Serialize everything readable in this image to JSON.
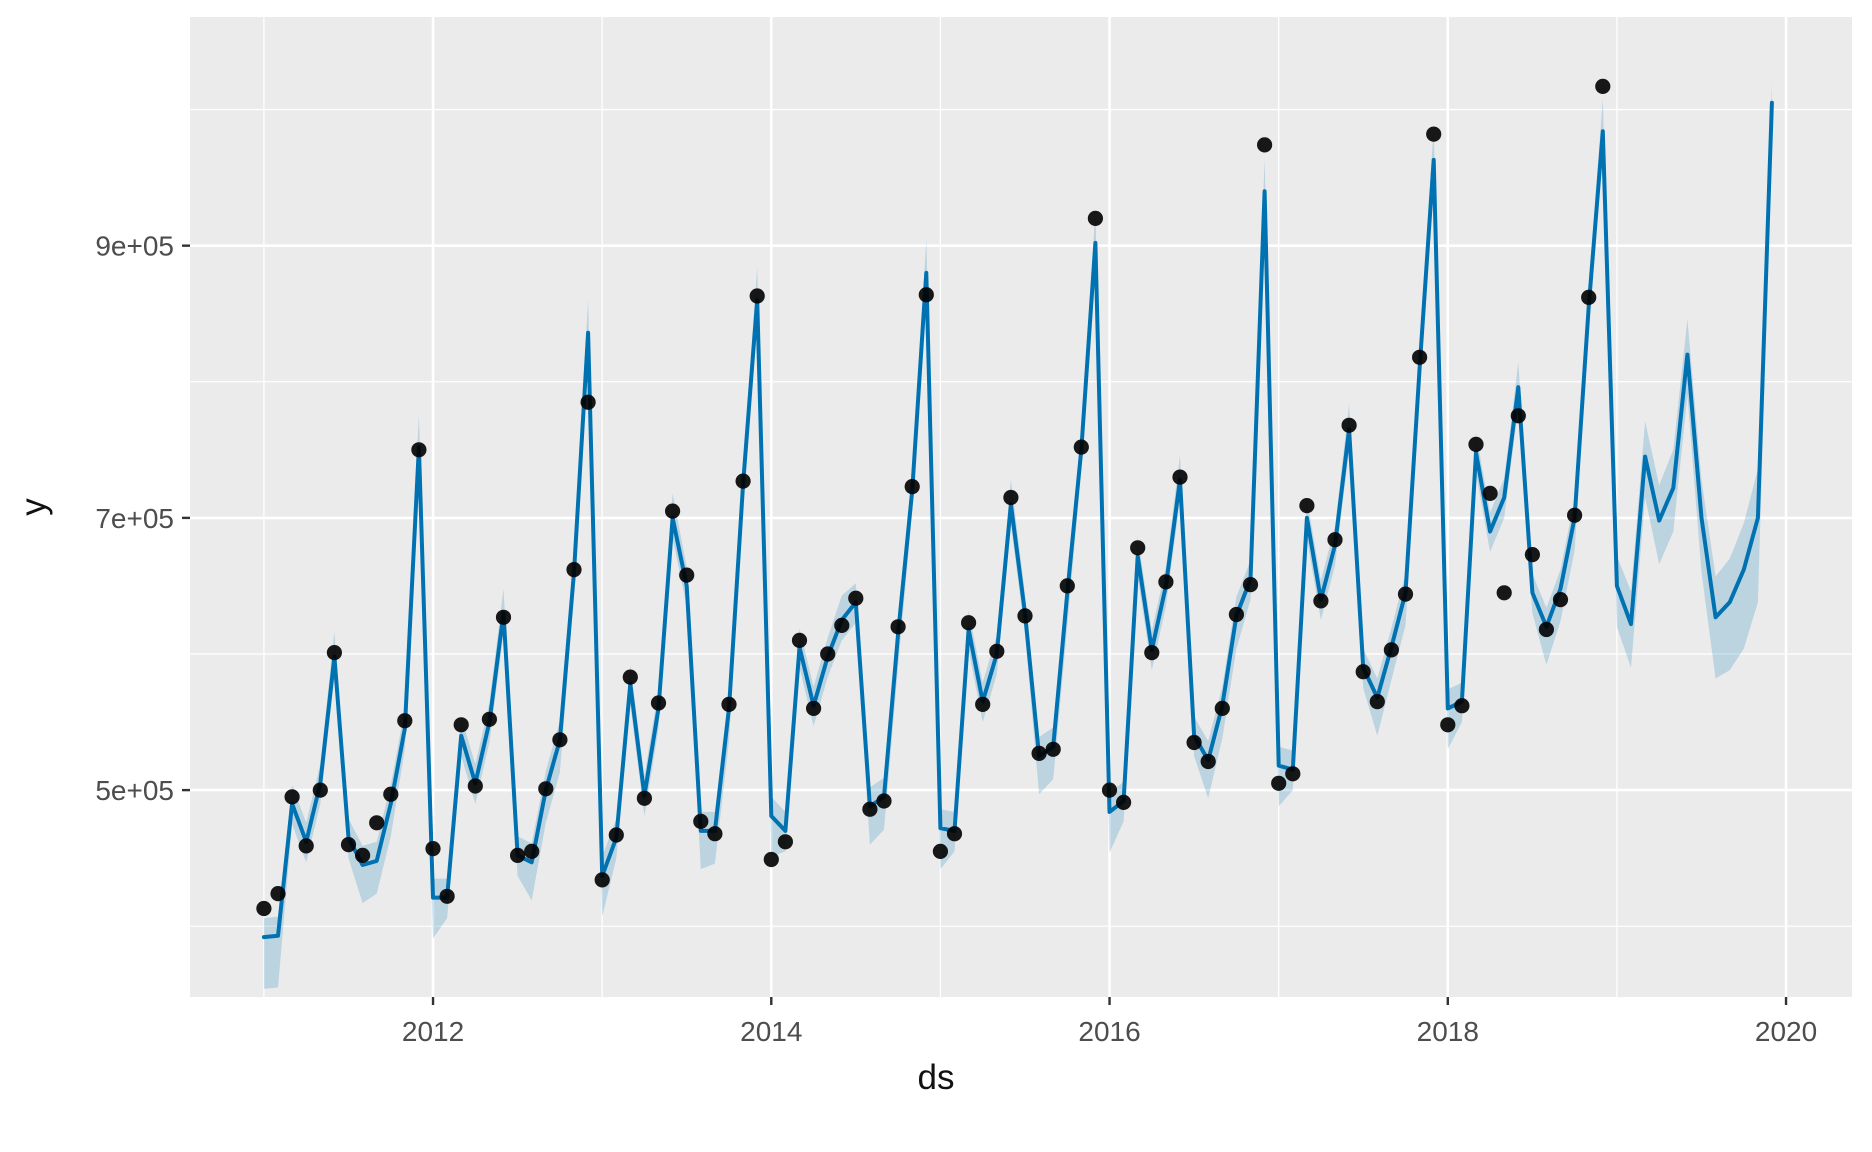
{
  "figure": {
    "kind": "prophet-forecast-plot",
    "background": "#FFFFFF",
    "panel_background": "#EBEBEB",
    "grid_color": "#FFFFFF",
    "tick_mark_color": "#333333",
    "tick_label_color": "#4D4D4D",
    "axis_title_color": "#111111"
  },
  "chart_data": {
    "type": "line",
    "title": "",
    "xlabel": "ds",
    "ylabel": "y",
    "legend": "none",
    "grid": "on",
    "xlim": [
      2010.563,
      2020.39
    ],
    "ylim": [
      348000,
      1068000
    ],
    "x_tick_values": [
      2012,
      2014,
      2016,
      2018,
      2020
    ],
    "x_tick_labels": [
      "2012",
      "2014",
      "2016",
      "2018",
      "2020"
    ],
    "x_minor_gridlines": [
      2011,
      2013,
      2015,
      2017,
      2019
    ],
    "y_tick_values": [
      500000,
      700000,
      900000
    ],
    "y_tick_labels": [
      "5e+05",
      "7e+05",
      "9e+05"
    ],
    "y_minor_gridlines": [
      400000,
      600000,
      800000,
      1000000
    ],
    "start_ds": "2011-01",
    "frequency": "monthly",
    "months_total": 108,
    "months_observed": 96,
    "point_color": "#000000",
    "line_color": "#0072B2",
    "band_color_rgba": "rgba(0,114,178,0.2)",
    "series": [
      {
        "name": "observed-points",
        "type": "scatter",
        "values": [
          413000,
          424000,
          495000,
          459000,
          500000,
          601000,
          460000,
          452000,
          476000,
          497000,
          551000,
          750000,
          457000,
          422000,
          548000,
          503000,
          552000,
          627000,
          452000,
          455000,
          501000,
          537000,
          662000,
          785000,
          434000,
          467000,
          583000,
          494000,
          564000,
          705000,
          658000,
          477000,
          468000,
          563000,
          727000,
          863000,
          449000,
          462000,
          610000,
          560000,
          600000,
          621000,
          641000,
          486000,
          492000,
          620000,
          723000,
          864000,
          455000,
          468000,
          623000,
          563000,
          602000,
          715000,
          628000,
          527000,
          530000,
          650000,
          752000,
          920000,
          500000,
          491000,
          678000,
          601000,
          653000,
          730000,
          535000,
          521000,
          560000,
          629000,
          651000,
          974000,
          505000,
          512000,
          709000,
          639000,
          684000,
          768000,
          587000,
          565000,
          603000,
          644000,
          818000,
          982000,
          548000,
          562000,
          754000,
          718000,
          645000,
          775000,
          673000,
          618000,
          640000,
          702000,
          862000,
          1017000
        ]
      },
      {
        "name": "yhat-line",
        "type": "line",
        "values": [
          392000,
          393000,
          490000,
          462000,
          505000,
          598000,
          465000,
          445000,
          448000,
          490000,
          545000,
          752000,
          421000,
          421000,
          540000,
          505000,
          550000,
          630000,
          452000,
          447000,
          500000,
          537000,
          660000,
          836000,
          437000,
          465000,
          578000,
          496000,
          560000,
          700000,
          650000,
          470000,
          470000,
          560000,
          725000,
          860000,
          481000,
          470000,
          605000,
          562000,
          598000,
          625000,
          638000,
          488000,
          495000,
          615000,
          720000,
          880000,
          472000,
          470000,
          618000,
          565000,
          600000,
          710000,
          630000,
          525000,
          532000,
          645000,
          750000,
          902000,
          484000,
          492000,
          672000,
          603000,
          650000,
          728000,
          540000,
          522000,
          562000,
          628000,
          655000,
          940000,
          518000,
          515000,
          700000,
          640000,
          680000,
          765000,
          590000,
          568000,
          605000,
          645000,
          810000,
          963000,
          560000,
          565000,
          748000,
          690000,
          715000,
          796000,
          645000,
          620000,
          648000,
          700000,
          855000,
          984000,
          650000,
          622000,
          745000,
          698000,
          722000,
          820000,
          700000,
          627000,
          638000,
          662000,
          700000,
          1005000
        ]
      },
      {
        "name": "uncertainty-band",
        "type": "band",
        "upper": [
          406000,
          407000,
          504000,
          476000,
          519000,
          616000,
          479000,
          459000,
          462000,
          504000,
          559000,
          776000,
          435000,
          435000,
          554000,
          519000,
          564000,
          648000,
          466000,
          461000,
          514000,
          551000,
          674000,
          860000,
          451000,
          479000,
          592000,
          510000,
          574000,
          718000,
          664000,
          484000,
          484000,
          574000,
          739000,
          884000,
          495000,
          484000,
          619000,
          576000,
          612000,
          643000,
          652000,
          502000,
          509000,
          629000,
          734000,
          904000,
          486000,
          484000,
          632000,
          579000,
          614000,
          728000,
          644000,
          539000,
          546000,
          659000,
          764000,
          926000,
          498000,
          506000,
          686000,
          617000,
          664000,
          746000,
          554000,
          536000,
          576000,
          642000,
          669000,
          964000,
          532000,
          529000,
          714000,
          654000,
          694000,
          783000,
          604000,
          582000,
          619000,
          659000,
          824000,
          987000,
          574000,
          579000,
          762000,
          704000,
          729000,
          814000,
          659000,
          634000,
          662000,
          714000,
          869000,
          1008000,
          672000,
          646000,
          771000,
          724000,
          750000,
          846000,
          728000,
          657000,
          670000,
          696000,
          736000,
          1020000
        ],
        "lower": [
          354000,
          355000,
          475000,
          447000,
          490000,
          583000,
          450000,
          417000,
          424000,
          466000,
          530000,
          737000,
          391000,
          406000,
          525000,
          490000,
          535000,
          615000,
          437000,
          419000,
          476000,
          513000,
          645000,
          821000,
          407000,
          450000,
          563000,
          481000,
          545000,
          685000,
          635000,
          442000,
          446000,
          536000,
          710000,
          845000,
          451000,
          455000,
          590000,
          547000,
          583000,
          610000,
          623000,
          460000,
          471000,
          591000,
          705000,
          865000,
          442000,
          455000,
          603000,
          550000,
          585000,
          695000,
          615000,
          497000,
          508000,
          621000,
          735000,
          887000,
          454000,
          477000,
          657000,
          588000,
          635000,
          713000,
          525000,
          494000,
          538000,
          604000,
          640000,
          925000,
          488000,
          500000,
          685000,
          625000,
          665000,
          750000,
          575000,
          540000,
          581000,
          621000,
          795000,
          948000,
          530000,
          550000,
          733000,
          675000,
          700000,
          781000,
          630000,
          592000,
          624000,
          676000,
          840000,
          969000,
          620000,
          590000,
          715000,
          666000,
          690000,
          790000,
          660000,
          582000,
          588000,
          604000,
          638000,
          980000
        ]
      }
    ]
  }
}
